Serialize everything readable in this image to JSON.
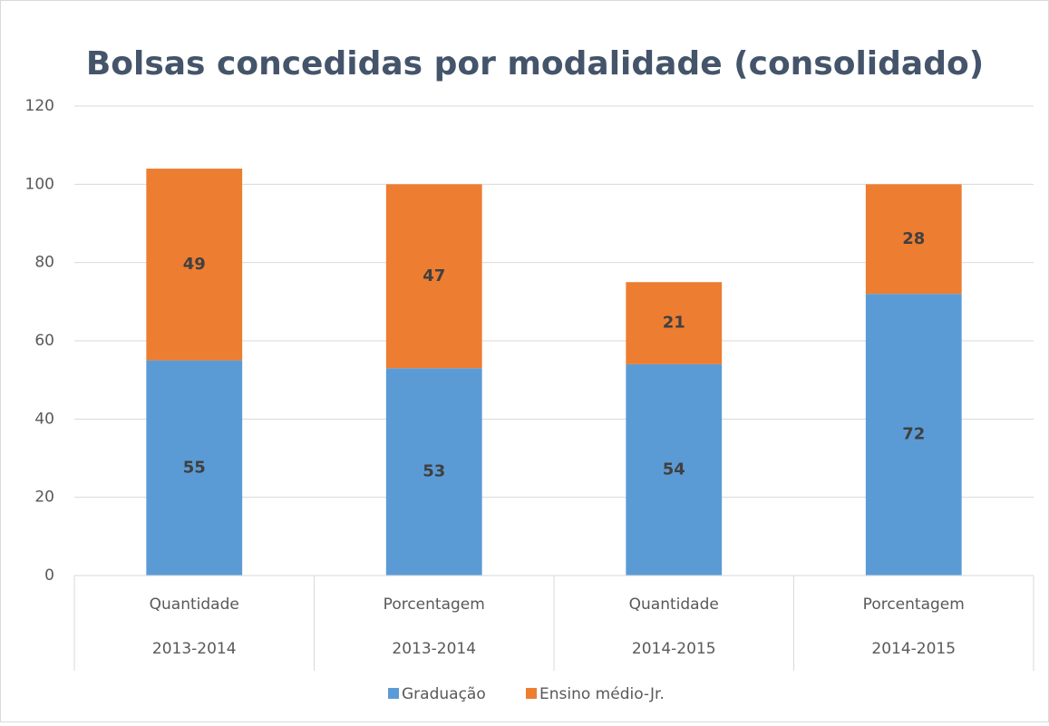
{
  "chart_data": {
    "type": "stacked_bar",
    "title": "Bolsas concedidas por modalidade (consolidado)",
    "categories": [
      "Quantidade",
      "Porcentagem",
      "Quantidade",
      "Porcentagem"
    ],
    "category_groups": [
      "2013-2014",
      "2013-2014",
      "2014-2015",
      "2014-2015"
    ],
    "series": [
      {
        "name": "Graduação",
        "color": "#5b9bd5",
        "values": [
          55,
          53,
          54,
          72
        ]
      },
      {
        "name": "Ensino médio-Jr.",
        "color": "#ed7d31",
        "values": [
          49,
          47,
          21,
          28
        ]
      }
    ],
    "ylim": [
      0,
      120
    ],
    "yticks": [
      0,
      20,
      40,
      60,
      80,
      100,
      120
    ],
    "grid": true,
    "legend": "bottom"
  }
}
